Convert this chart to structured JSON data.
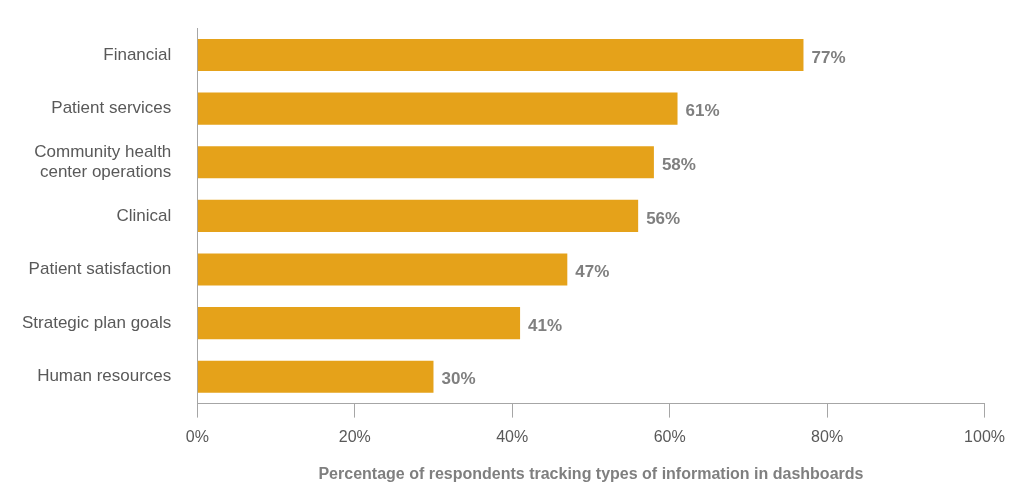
{
  "chart_data": {
    "type": "bar",
    "orientation": "horizontal",
    "categories": [
      "Financial",
      "Patient services",
      "Community health center operations",
      "Clinical",
      "Patient satisfaction",
      "Strategic plan goals",
      "Human resources"
    ],
    "values": [
      77,
      61,
      58,
      56,
      47,
      41,
      30
    ],
    "value_labels": [
      "77%",
      "61%",
      "58%",
      "56%",
      "47%",
      "41%",
      "30%"
    ],
    "color": "#e5a21a",
    "xlabel": "Percentage of respondents tracking types of information in dashboards",
    "xlim": [
      0,
      100
    ],
    "xticks": [
      {
        "value": 0,
        "label": "0%"
      },
      {
        "value": 20,
        "label": "20%"
      },
      {
        "value": 40,
        "label": "40%"
      },
      {
        "value": 60,
        "label": "60%"
      },
      {
        "value": 80,
        "label": "80%"
      },
      {
        "value": 100,
        "label": "100%"
      }
    ],
    "grid": false,
    "legend": false
  }
}
